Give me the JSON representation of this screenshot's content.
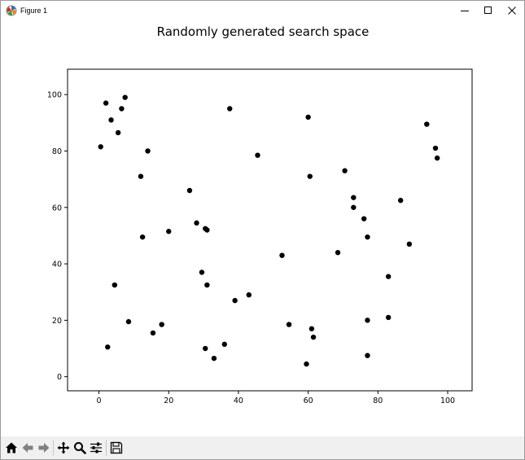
{
  "window": {
    "title": "Figure 1",
    "icon": "matplotlib-icon",
    "controls": [
      {
        "name": "minimize-button",
        "icon": "minimize-icon"
      },
      {
        "name": "maximize-button",
        "icon": "maximize-icon"
      },
      {
        "name": "close-button",
        "icon": "close-icon"
      }
    ]
  },
  "toolbar": {
    "buttons": [
      {
        "name": "home-button",
        "icon": "home-icon"
      },
      {
        "name": "back-button",
        "icon": "back-arrow-icon"
      },
      {
        "name": "forward-button",
        "icon": "forward-arrow-icon"
      },
      {
        "name": "pan-button",
        "icon": "pan-move-icon"
      },
      {
        "name": "zoom-button",
        "icon": "zoom-magnifier-icon"
      },
      {
        "name": "configure-subplots-button",
        "icon": "sliders-icon"
      },
      {
        "name": "save-button",
        "icon": "save-floppy-icon"
      }
    ]
  },
  "chart_data": {
    "type": "scatter",
    "title": "Randomly generated search space",
    "xlabel": "",
    "ylabel": "",
    "xlim": [
      -9,
      107
    ],
    "ylim": [
      -5,
      109
    ],
    "xticks": [
      0,
      20,
      40,
      60,
      80,
      100
    ],
    "yticks": [
      0,
      20,
      40,
      60,
      80,
      100
    ],
    "grid": false,
    "marker_color": "#000000",
    "points": [
      [
        0.5,
        81.5
      ],
      [
        2,
        97
      ],
      [
        3.5,
        91
      ],
      [
        5.5,
        86.5
      ],
      [
        6.5,
        95
      ],
      [
        7.5,
        99
      ],
      [
        12,
        71
      ],
      [
        14,
        80
      ],
      [
        12.5,
        49.5
      ],
      [
        20,
        51.5
      ],
      [
        4.5,
        32.5
      ],
      [
        8.5,
        19.5
      ],
      [
        2.5,
        10.5
      ],
      [
        15.5,
        15.5
      ],
      [
        18,
        18.5
      ],
      [
        26,
        66
      ],
      [
        28,
        54.5
      ],
      [
        30.5,
        52.5
      ],
      [
        31,
        52
      ],
      [
        29.5,
        37
      ],
      [
        31,
        32.5
      ],
      [
        37.5,
        95
      ],
      [
        45.5,
        78.5
      ],
      [
        39,
        27
      ],
      [
        43,
        29
      ],
      [
        30.5,
        10
      ],
      [
        33,
        6.5
      ],
      [
        36,
        11.5
      ],
      [
        52.5,
        43
      ],
      [
        54.5,
        18.5
      ],
      [
        60,
        92
      ],
      [
        60.5,
        71
      ],
      [
        61,
        17
      ],
      [
        61.5,
        14
      ],
      [
        59.5,
        4.5
      ],
      [
        68.5,
        44
      ],
      [
        70.5,
        73
      ],
      [
        73,
        63.5
      ],
      [
        73,
        60
      ],
      [
        76,
        56
      ],
      [
        77,
        49.5
      ],
      [
        77,
        20
      ],
      [
        77,
        7.5
      ],
      [
        83,
        35.5
      ],
      [
        83,
        21
      ],
      [
        86.5,
        62.5
      ],
      [
        89,
        47
      ],
      [
        94,
        89.5
      ],
      [
        96.5,
        81
      ],
      [
        97,
        77.5
      ]
    ]
  }
}
